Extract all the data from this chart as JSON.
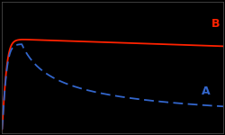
{
  "background_color": "#000000",
  "label_B": "B",
  "label_A": "A",
  "label_B_color": "#ff2200",
  "label_A_color": "#3366cc",
  "line_B_color": "#ff2200",
  "line_A_color": "#3366cc",
  "figsize": [
    2.5,
    1.5
  ],
  "dpi": 100,
  "xlim": [
    0,
    1
  ],
  "ylim": [
    0,
    1.15
  ]
}
